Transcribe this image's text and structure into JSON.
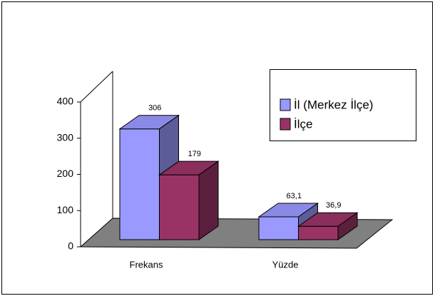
{
  "chart_data": {
    "type": "bar",
    "categories": [
      "Frekans",
      "Yüzde"
    ],
    "series": [
      {
        "name": "İl (Merkez İlçe)",
        "color": "#9999ff",
        "values": [
          306,
          63.1
        ],
        "value_labels": [
          "306",
          "63,1"
        ]
      },
      {
        "name": "İlçe",
        "color": "#993366",
        "values": [
          179,
          36.9
        ],
        "value_labels": [
          "179",
          "36,9"
        ]
      }
    ],
    "ylim": [
      0,
      400
    ],
    "yticks": [
      0,
      100,
      200,
      300,
      400
    ],
    "grid": false,
    "legend": "upper right"
  }
}
